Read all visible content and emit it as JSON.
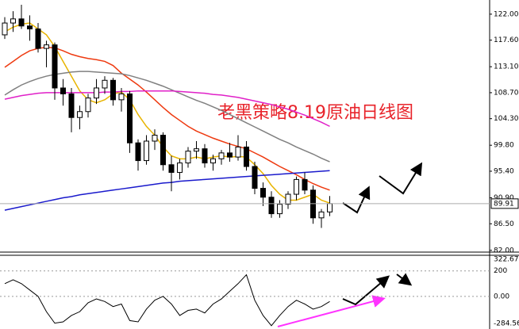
{
  "chart_data": [
    {
      "type": "candlestick",
      "title": "老黑策略8.19原油日线图",
      "ylim": [
        81.7,
        124.4
      ],
      "yticks": [
        {
          "value": 122,
          "label": "122.00"
        },
        {
          "value": 117.6,
          "label": "117.60"
        },
        {
          "value": 113.1,
          "label": "113.10"
        },
        {
          "value": 108.7,
          "label": "108.70"
        },
        {
          "value": 104.3,
          "label": "104.30"
        },
        {
          "value": 99.8,
          "label": "99.80"
        },
        {
          "value": 95.4,
          "label": "95.40"
        },
        {
          "value": 90.9,
          "label": "90.90"
        },
        {
          "value": 86.5,
          "label": "86.50"
        },
        {
          "value": 82,
          "label": "82.00"
        }
      ],
      "current": 89.91,
      "candles": [
        [
          118.5,
          121.5,
          117.8,
          120.5
        ],
        [
          120.5,
          122.5,
          119,
          121.2
        ],
        [
          121.2,
          123.6,
          119.5,
          120
        ],
        [
          120,
          121.8,
          117.5,
          119.5
        ],
        [
          119.5,
          120.5,
          115.5,
          116.2
        ],
        [
          116.2,
          117.5,
          113,
          116.8
        ],
        [
          116.8,
          117.2,
          107.5,
          109.5
        ],
        [
          109.5,
          111,
          106.5,
          108.5
        ],
        [
          108.5,
          109.5,
          102,
          104.5
        ],
        [
          104.5,
          106.5,
          102.5,
          105.5
        ],
        [
          105.5,
          108.5,
          104.5,
          107.8
        ],
        [
          107.8,
          111,
          106.8,
          109.5
        ],
        [
          109.5,
          111.5,
          108.5,
          110.8
        ],
        [
          110.8,
          111.2,
          106.5,
          107.5
        ],
        [
          107.5,
          109.5,
          105.5,
          108.5
        ],
        [
          108.5,
          109,
          98.5,
          100.2
        ],
        [
          100.2,
          100.8,
          95.5,
          97.2
        ],
        [
          97.2,
          101.5,
          96.5,
          100.5
        ],
        [
          100.5,
          102.5,
          99,
          101.5
        ],
        [
          101.5,
          102,
          95.5,
          96.5
        ],
        [
          96.5,
          98,
          92,
          95.2
        ],
        [
          95.2,
          97.5,
          94,
          96.8
        ],
        [
          96.8,
          99.5,
          96,
          98.8
        ],
        [
          98.8,
          100.5,
          97.5,
          99.2
        ],
        [
          99.2,
          100,
          96,
          96.8
        ],
        [
          96.8,
          98.2,
          95.5,
          97.5
        ],
        [
          97.5,
          99,
          96.5,
          98.5
        ],
        [
          98.5,
          100.2,
          97,
          97.8
        ],
        [
          97.8,
          101.5,
          97.2,
          99.5
        ],
        [
          99.5,
          100.5,
          95.5,
          96.2
        ],
        [
          96.2,
          97,
          91.5,
          92.5
        ],
        [
          92.5,
          93.5,
          89.5,
          91
        ],
        [
          91,
          92,
          87.5,
          88.2
        ],
        [
          88.2,
          90.5,
          87.5,
          89.8
        ],
        [
          89.8,
          92,
          89,
          91.5
        ],
        [
          91.5,
          94.5,
          90.5,
          94
        ],
        [
          94,
          95.2,
          91.5,
          92.2
        ],
        [
          92.2,
          93,
          86.5,
          87.5
        ],
        [
          87.5,
          89,
          85.8,
          88.5
        ],
        [
          88.5,
          91.2,
          87.8,
          89.91
        ]
      ],
      "series": [
        {
          "color": "#e8b400",
          "values": [
            119,
            119.8,
            120.3,
            120.5,
            119.5,
            118.5,
            116.5,
            114,
            111.5,
            109,
            107.5,
            107,
            107.5,
            108.5,
            108.8,
            107.5,
            105,
            103,
            101.5,
            99.5,
            98,
            97.5,
            97.5,
            97.8,
            97.5,
            97.8,
            98,
            97.8,
            97.9,
            97.8,
            96.5,
            95,
            93,
            91.5,
            90.5,
            90.5,
            91,
            91.5,
            90.5,
            90
          ]
        },
        {
          "color": "#ee3a10",
          "values": [
            113,
            114,
            115,
            115.8,
            116.2,
            116.4,
            116.3,
            115.8,
            115.2,
            114.8,
            114.5,
            114.3,
            114,
            113.3,
            112,
            111,
            110,
            108.8,
            107.5,
            106.2,
            105,
            104,
            103,
            102.2,
            101.6,
            101,
            100.5,
            100,
            99.6,
            99.2,
            98.5,
            97.8,
            97,
            96.2,
            95.5,
            94.8,
            94,
            93.3,
            92.7,
            92.2
          ]
        },
        {
          "color": "#808080",
          "values": [
            108.3,
            109.2,
            110,
            110.6,
            111.1,
            111.5,
            111.8,
            112,
            112.2,
            112.3,
            112.3,
            112.2,
            112.1,
            112,
            111.9,
            111.6,
            111.2,
            110.8,
            110.3,
            109.8,
            109.2,
            108.6,
            108,
            107.4,
            106.9,
            106.3,
            105.7,
            105,
            104.3,
            103.6,
            102.9,
            102.2,
            101.5,
            100.8,
            100.2,
            99.5,
            98.9,
            98.3,
            97.6,
            97
          ]
        },
        {
          "color": "#e020c8",
          "values": [
            107.6,
            107.9,
            108.2,
            108.4,
            108.6,
            108.7,
            108.7,
            108.7,
            108.7,
            108.7,
            108.7,
            108.7,
            108.8,
            108.8,
            108.9,
            108.9,
            109,
            109,
            109,
            109,
            109,
            108.9,
            108.8,
            108.7,
            108.6,
            108.4,
            108.3,
            108.1,
            107.9,
            107.6,
            107.3,
            107,
            106.7,
            106.3,
            105.9,
            105.4,
            104.9,
            104.3,
            103.7,
            103
          ]
        },
        {
          "color": "#1a1acc",
          "values": [
            88.8,
            89.1,
            89.4,
            89.7,
            90,
            90.3,
            90.6,
            90.9,
            91.1,
            91.4,
            91.6,
            91.8,
            92,
            92.2,
            92.4,
            92.6,
            92.8,
            93,
            93.2,
            93.4,
            93.5,
            93.7,
            93.8,
            93.9,
            94,
            94.1,
            94.2,
            94.3,
            94.4,
            94.5,
            94.6,
            94.7,
            94.8,
            94.9,
            95,
            95.1,
            95.2,
            95.3,
            95.4,
            95.5
          ]
        }
      ]
    },
    {
      "type": "line",
      "ylim": [
        -256,
        322.67
      ],
      "max_label": "322.670",
      "min_label": "-284.56",
      "yticks": [
        {
          "value": 200,
          "label": "200"
        },
        {
          "value": 0,
          "label": "0.00"
        }
      ],
      "color": "#000000",
      "values": [
        100,
        130,
        100,
        50,
        0,
        -120,
        -210,
        -200,
        -150,
        -120,
        -50,
        -20,
        -40,
        -80,
        -60,
        -190,
        -200,
        -100,
        -30,
        0,
        -60,
        -150,
        -110,
        -100,
        -130,
        -60,
        -20,
        40,
        100,
        170,
        -30,
        -150,
        -230,
        -150,
        -80,
        -30,
        -60,
        -100,
        -80,
        -40
      ]
    }
  ]
}
